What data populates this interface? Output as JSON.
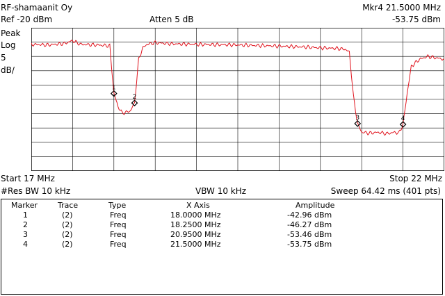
{
  "header": {
    "title": "RF-shamaanit Oy",
    "ref_level": "Ref -20 dBm",
    "attenuation": "Atten 5 dB",
    "marker_label": "Mkr4  21.5000 MHz",
    "marker_amplitude": "-53.75 dBm"
  },
  "side_labels": {
    "detector": "Peak",
    "scale_type": "Log",
    "scale_value": "5",
    "scale_unit": "dB/"
  },
  "footer": {
    "start": "Start 17 MHz",
    "stop": "Stop 22 MHz",
    "res_bw": "#Res BW 10 kHz",
    "vbw": "VBW 10 kHz",
    "sweep": "Sweep 64.42 ms (401 pts)"
  },
  "colors": {
    "trace": "#e0141e",
    "grid": "#000000",
    "marker": "#000000"
  },
  "chart_data": {
    "type": "line",
    "x_start_mhz": 17,
    "x_stop_mhz": 22,
    "ref_dbm": -20,
    "db_per_div": 5,
    "divisions": 10,
    "grid": true,
    "series": [
      {
        "x": [
          17.0,
          17.2,
          17.4,
          17.5,
          17.6,
          17.8,
          17.95,
          18.0,
          18.05,
          18.1,
          18.15,
          18.2,
          18.25,
          18.3,
          18.35,
          18.4,
          18.5,
          18.7,
          19.0,
          19.5,
          20.0,
          20.3,
          20.5,
          20.7,
          20.8,
          20.85,
          20.9,
          20.95,
          21.0,
          21.1,
          21.2,
          21.3,
          21.4,
          21.45,
          21.5,
          21.55,
          21.6,
          21.7,
          21.8,
          22.0
        ],
        "y": [
          -25.8,
          -26.0,
          -25.5,
          -24.5,
          -25.8,
          -26.0,
          -26.3,
          -42.9,
          -47.5,
          -49.8,
          -49.5,
          -49.0,
          -46.3,
          -31.0,
          -27.0,
          -25.8,
          -25.2,
          -25.6,
          -25.8,
          -26.0,
          -26.4,
          -26.7,
          -27.0,
          -27.2,
          -27.5,
          -28.5,
          -44.0,
          -53.5,
          -56.5,
          -56.8,
          -56.5,
          -57.0,
          -56.5,
          -56.8,
          -53.8,
          -43.0,
          -33.5,
          -31.0,
          -30.0,
          -31.0
        ]
      }
    ],
    "markers": [
      {
        "number": "1",
        "x": 18.0,
        "y": -42.96
      },
      {
        "number": "2",
        "x": 18.25,
        "y": -46.27
      },
      {
        "number": "3",
        "x": 20.95,
        "y": -53.46
      },
      {
        "number": "4",
        "x": 21.5,
        "y": -53.75
      }
    ]
  },
  "marker_table": {
    "headers": {
      "marker": "Marker",
      "trace": "Trace",
      "type": "Type",
      "x_axis": "X Axis",
      "amplitude": "Amplitude"
    },
    "rows": [
      {
        "marker": "1",
        "trace": "(2)",
        "type": "Freq",
        "x_axis": "18.0000 MHz",
        "amplitude": "-42.96 dBm"
      },
      {
        "marker": "2",
        "trace": "(2)",
        "type": "Freq",
        "x_axis": "18.2500 MHz",
        "amplitude": "-46.27 dBm"
      },
      {
        "marker": "3",
        "trace": "(2)",
        "type": "Freq",
        "x_axis": "20.9500 MHz",
        "amplitude": "-53.46 dBm"
      },
      {
        "marker": "4",
        "trace": "(2)",
        "type": "Freq",
        "x_axis": "21.5000 MHz",
        "amplitude": "-53.75 dBm"
      }
    ]
  }
}
